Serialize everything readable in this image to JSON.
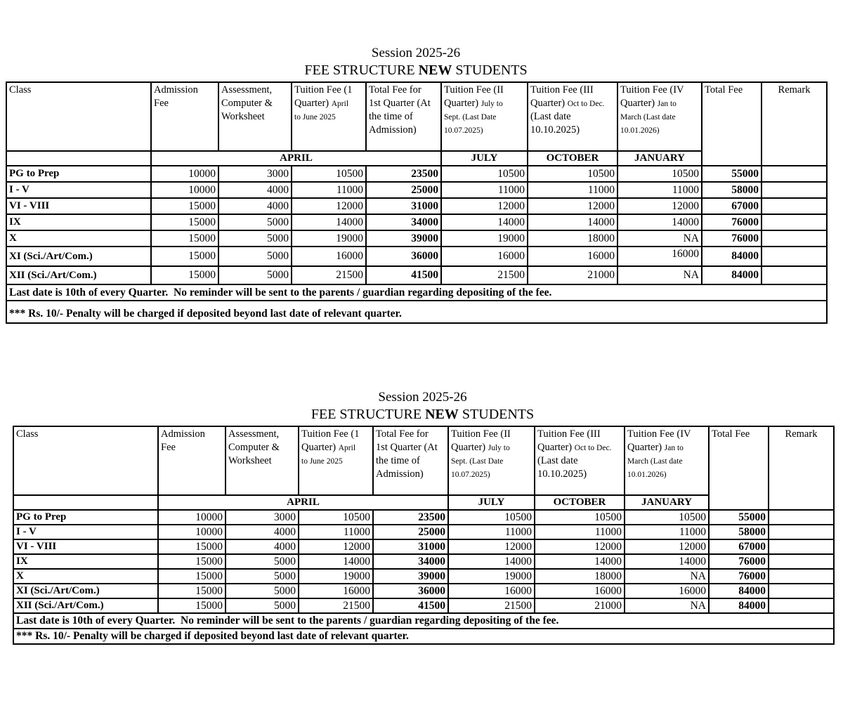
{
  "doc": {
    "title_session": "Session 2025-26",
    "title_fee_pre": "FEE STRUCTURE ",
    "title_fee_bold": "NEW",
    "title_fee_post": " STUDENTS"
  },
  "table": {
    "header_cells": [
      {
        "name": "class",
        "parts": [
          {
            "t": "Class"
          }
        ]
      },
      {
        "name": "admission-fee",
        "parts": [
          {
            "t": "Admission\nFee"
          }
        ]
      },
      {
        "name": "assessment-computer-worksheet",
        "parts": [
          {
            "t": "Assessment,\nComputer &\nWorksheet"
          }
        ]
      },
      {
        "name": "tuition-fee-q1",
        "parts": [
          {
            "t": "Tuition Fee (1\nQuarter) "
          },
          {
            "t": "April\nto June 2025",
            "small": true
          }
        ]
      },
      {
        "name": "total-fee-q1",
        "parts": [
          {
            "t": "Total Fee for\n1st Quarter (At\nthe time of\nAdmission)"
          }
        ]
      },
      {
        "name": "tuition-fee-q2",
        "parts": [
          {
            "t": "Tuition Fee (II\nQuarter) "
          },
          {
            "t": "July to\nSept. (Last Date\n10.07.2025)",
            "small": true
          }
        ]
      },
      {
        "name": "tuition-fee-q3",
        "parts": [
          {
            "t": "Tuition Fee (III\nQuarter) "
          },
          {
            "t": "Oct to Dec.",
            "small": true
          },
          {
            "t": "\n(Last date\n10.10.2025)"
          }
        ]
      },
      {
        "name": "tuition-fee-q4",
        "parts": [
          {
            "t": "Tuition Fee (IV\nQuarter) "
          },
          {
            "t": "Jan to\nMarch (Last date\n10.01.2026)",
            "small": true
          }
        ]
      },
      {
        "name": "total-fee",
        "parts": [
          {
            "t": "Total Fee"
          }
        ],
        "rowspan": 2
      },
      {
        "name": "remark",
        "parts": [
          {
            "t": "Remark"
          }
        ],
        "rowspan": 2,
        "center": true
      }
    ],
    "subheader": {
      "april": "APRIL",
      "july": "JULY",
      "october": "OCTOBER",
      "january": "JANUARY"
    },
    "rows": [
      {
        "class": "PG to Prep",
        "admission": "10000",
        "assessment": "3000",
        "q1": "10500",
        "total_q1": "23500",
        "q2": "10500",
        "q3": "10500",
        "q4": "10500",
        "total": "55000",
        "remark": ""
      },
      {
        "class": "I - V",
        "admission": "10000",
        "assessment": "4000",
        "q1": "11000",
        "total_q1": "25000",
        "q2": "11000",
        "q3": "11000",
        "q4": "11000",
        "total": "58000",
        "remark": ""
      },
      {
        "class": "VI - VIII",
        "admission": "15000",
        "assessment": "4000",
        "q1": "12000",
        "total_q1": "31000",
        "q2": "12000",
        "q3": "12000",
        "q4": "12000",
        "total": "67000",
        "remark": ""
      },
      {
        "class": "IX",
        "admission": "15000",
        "assessment": "5000",
        "q1": "14000",
        "total_q1": "34000",
        "q2": "14000",
        "q3": "14000",
        "q4": "14000",
        "total": "76000",
        "remark": ""
      },
      {
        "class": "X",
        "admission": "15000",
        "assessment": "5000",
        "q1": "19000",
        "total_q1": "39000",
        "q2": "19000",
        "q3": "18000",
        "q4": "NA",
        "total": "76000",
        "remark": ""
      },
      {
        "class": "XI (Sci./Art/Com.)",
        "admission": "15000",
        "assessment": "5000",
        "q1": "16000",
        "total_q1": "36000",
        "q2": "16000",
        "q3": "16000",
        "q4": "16000",
        "total": "84000",
        "remark": ""
      },
      {
        "class": "XII (Sci./Art/Com.)",
        "admission": "15000",
        "assessment": "5000",
        "q1": "21500",
        "total_q1": "41500",
        "q2": "21500",
        "q3": "21000",
        "q4": "NA",
        "total": "84000",
        "remark": ""
      }
    ],
    "footnotes": [
      "Last date is 10th of every Quarter.  No reminder will be sent to the parents / guardian regarding depositing of the fee.",
      "*** Rs. 10/- Penalty will be charged if deposited beyond last date of relevant quarter."
    ]
  }
}
